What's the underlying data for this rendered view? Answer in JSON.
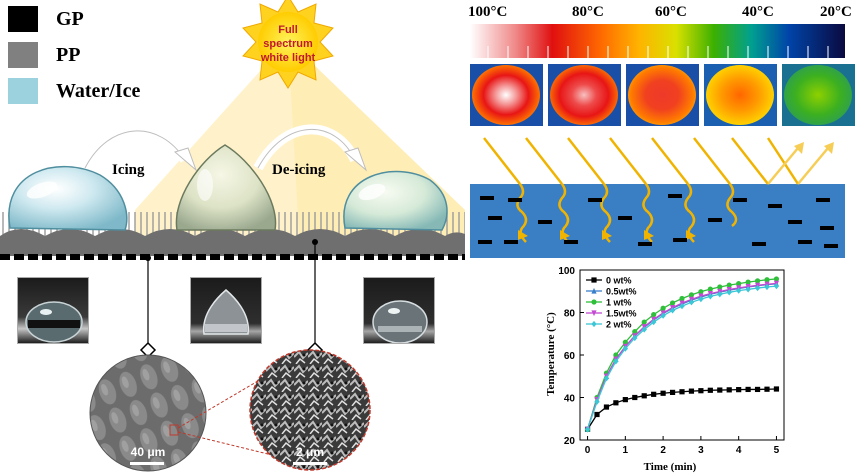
{
  "legend": [
    {
      "label": "GP",
      "color": "#000000"
    },
    {
      "label": "PP",
      "color": "#808080"
    },
    {
      "label": "Water/Ice",
      "color": "#9bd2dd"
    }
  ],
  "sun": {
    "line1": "Full",
    "line2": "spectrum",
    "line3": "white light"
  },
  "process": {
    "icing": "Icing",
    "deicing": "De-icing"
  },
  "scale_bars": {
    "left": "40 μm",
    "right": "2 μm"
  },
  "colorbar": {
    "ticks": [
      "100°C",
      "80°C",
      "60°C",
      "40°C",
      "20°C"
    ]
  },
  "chart_data": {
    "type": "line",
    "xlabel": "Time (min)",
    "ylabel": "Temperature (°C)",
    "xlim": [
      -0.2,
      5.2
    ],
    "ylim": [
      20,
      100
    ],
    "xticks": [
      "0",
      "1",
      "2",
      "3",
      "4",
      "5"
    ],
    "yticks": [
      "20",
      "40",
      "60",
      "80",
      "100"
    ],
    "x": [
      0,
      0.25,
      0.5,
      0.75,
      1,
      1.25,
      1.5,
      1.75,
      2,
      2.25,
      2.5,
      2.75,
      3,
      3.25,
      3.5,
      3.75,
      4,
      4.25,
      4.5,
      4.75,
      5
    ],
    "legend_position": "top-left",
    "series": [
      {
        "name": "0  wt%",
        "color": "#000000",
        "marker": "square",
        "values": [
          25,
          32,
          35.5,
          37.5,
          39,
          40,
          40.8,
          41.5,
          42,
          42.4,
          42.7,
          43,
          43.2,
          43.4,
          43.5,
          43.6,
          43.7,
          43.8,
          43.8,
          43.9,
          44
        ]
      },
      {
        "name": "0.5wt%",
        "color": "#3a7fc9",
        "marker": "triangle",
        "values": [
          25,
          39,
          50,
          58,
          64,
          69,
          73,
          76.5,
          79.5,
          82,
          84,
          85.8,
          87.3,
          88.6,
          89.6,
          90.5,
          91.3,
          92,
          92.6,
          93.1,
          93.5
        ]
      },
      {
        "name": "1  wt%",
        "color": "#2fbf3a",
        "marker": "circle",
        "values": [
          25,
          40,
          51.5,
          60,
          66,
          71,
          75.5,
          79,
          82,
          84.5,
          86.6,
          88.3,
          89.8,
          91,
          92,
          92.9,
          93.6,
          94.3,
          94.9,
          95.4,
          95.8
        ]
      },
      {
        "name": "1.5wt%",
        "color": "#c34bd3",
        "marker": "triangle-down",
        "values": [
          25,
          39,
          50,
          58,
          64,
          69,
          73.3,
          76.8,
          79.8,
          82.3,
          84.4,
          86.2,
          87.7,
          88.9,
          89.9,
          90.8,
          91.6,
          92.2,
          92.8,
          93.3,
          93.7
        ]
      },
      {
        "name": "2  wt%",
        "color": "#3cc7d6",
        "marker": "diamond",
        "values": [
          25,
          38,
          49,
          57,
          63,
          68,
          72,
          75.5,
          78.5,
          81,
          83,
          84.8,
          86.3,
          87.6,
          88.6,
          89.5,
          90.3,
          90.9,
          91.5,
          92,
          92.4
        ]
      }
    ]
  }
}
